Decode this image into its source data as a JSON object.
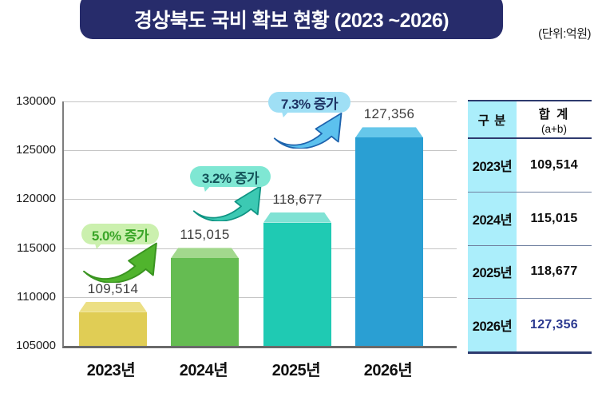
{
  "title": "경상북도 국비 확보 현황 (2023 ~2026)",
  "unit_label": "(단위:억원)",
  "chart_data": {
    "type": "bar",
    "title": "경상북도 국비 확보 현황 (2023 ~2026)",
    "unit": "억원",
    "categories": [
      "2023년",
      "2024년",
      "2025년",
      "2026년"
    ],
    "values": [
      109514,
      115015,
      118677,
      127356
    ],
    "value_labels": [
      "109,514",
      "115,015",
      "118,677",
      "127,356"
    ],
    "ylim": [
      105000,
      130000
    ],
    "ytick_step": 5000,
    "yticks": [
      "130000",
      "125000",
      "120000",
      "115000",
      "110000",
      "105000"
    ],
    "grid": true,
    "legend": "none",
    "annotations": [
      {
        "label": "5.0% 증가",
        "increase_pct": 5.0,
        "between": [
          "2023년",
          "2024년"
        ]
      },
      {
        "label": "3.2% 증가",
        "increase_pct": 3.2,
        "between": [
          "2024년",
          "2025년"
        ]
      },
      {
        "label": "7.3% 증가",
        "increase_pct": 7.3,
        "between": [
          "2025년",
          "2026년"
        ]
      }
    ]
  },
  "table": {
    "header": {
      "col1": "구 분",
      "col2_line1": "합 계",
      "col2_line2": "(a+b)"
    },
    "rows": [
      {
        "year": "2023년",
        "value": "109,514",
        "highlight": false
      },
      {
        "year": "2024년",
        "value": "115,015",
        "highlight": false
      },
      {
        "year": "2025년",
        "value": "118,677",
        "highlight": false
      },
      {
        "year": "2026년",
        "value": "127,356",
        "highlight": true
      }
    ]
  },
  "colors": {
    "banner_bg": "#272c6b",
    "banner_text": "#ffffff",
    "bar_colors": [
      "#e0cd55",
      "#65bc52",
      "#1fcab3",
      "#2a9fd3"
    ],
    "bar_cap_colors": [
      "#ecdf84",
      "#a2d88d",
      "#80e2d4",
      "#66c7ea"
    ],
    "gridline": "#c5c5c5",
    "axis": "#6a6a6a",
    "table_accent": "#abeefb",
    "table_border": "#2e3a6e",
    "highlight_value": "#2b3990",
    "annotation_styles": [
      {
        "pill_bg": "#cbf0ae",
        "text": "#3aa528",
        "arrow_fill": "#50b42d",
        "arrow_stroke": "#3a9420"
      },
      {
        "pill_bg": "#7fe7d3",
        "text": "#14545a",
        "arrow_fill": "#3cc9b3",
        "arrow_stroke": "#0f9483"
      },
      {
        "pill_bg": "#9fdff5",
        "text": "#1d3263",
        "arrow_fill": "#5cc1ee",
        "arrow_stroke": "#1e63ad"
      }
    ]
  }
}
